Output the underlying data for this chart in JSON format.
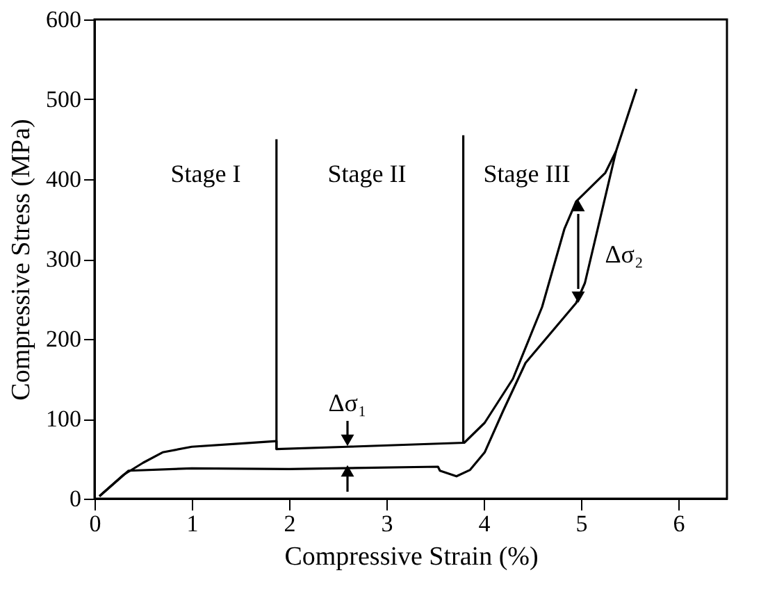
{
  "chart_data": {
    "type": "line",
    "xlabel": "Compressive Strain (%)",
    "ylabel": "Compressive Stress (MPa)",
    "xlim": [
      0,
      6.5
    ],
    "xticks": [
      0,
      1,
      2,
      3,
      4,
      5,
      6
    ],
    "ylim": [
      0,
      600
    ],
    "yticks": [
      0,
      100,
      200,
      300,
      400,
      500,
      600
    ],
    "grid": false,
    "marker": "none",
    "line_style": "solid",
    "series": [
      {
        "color": "#000000",
        "x": [
          0.05,
          0.3,
          0.5,
          0.7,
          1.0,
          1.5,
          1.87,
          1.87,
          2.6,
          3.8,
          4.01,
          4.3,
          4.6,
          4.83,
          4.95,
          5.25,
          5.36,
          5.57
        ],
        "values": [
          3,
          30,
          45,
          58,
          65,
          69,
          72,
          62,
          65,
          70,
          95,
          150,
          240,
          338,
          372,
          408,
          435,
          513
        ]
      },
      {
        "color": "#000000",
        "x": [
          0.05,
          0.35,
          1.0,
          2.0,
          3.53,
          3.55,
          3.72,
          3.86,
          4.01,
          4.2,
          4.43,
          4.95,
          5.04,
          5.36
        ],
        "values": [
          3,
          35,
          38,
          37,
          40,
          35,
          28,
          36,
          58,
          110,
          170,
          245,
          270,
          435
        ]
      },
      {
        "color": "#000000",
        "x": [
          1.87,
          1.87
        ],
        "values": [
          62,
          450
        ]
      },
      {
        "color": "#000000",
        "x": [
          3.79,
          3.79
        ],
        "values": [
          70,
          455
        ]
      }
    ],
    "annotations": [
      "Stage I",
      "Stage II",
      "Stage III",
      "Δσ₁",
      "Δσ₂"
    ]
  }
}
